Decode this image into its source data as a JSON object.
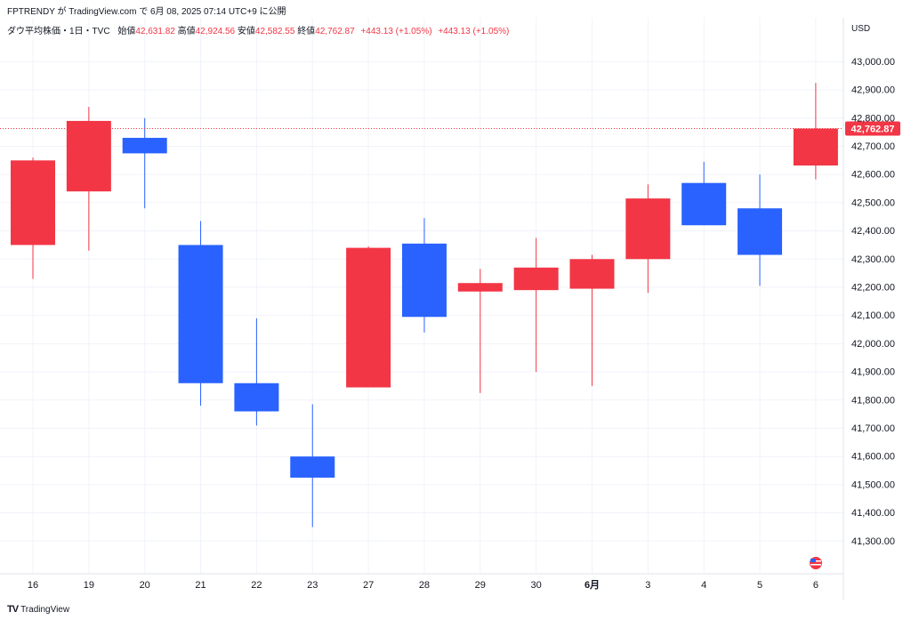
{
  "attribution": "FPTRENDY が TradingView.com で 6月 08, 2025 07:14 UTC+9 に公開",
  "legend": {
    "symbol": "ダウ平均株価・1日・TVC",
    "open_label": "始値",
    "open_value": "42,631.82",
    "high_label": "高値",
    "high_value": "42,924.56",
    "low_label": "安値",
    "low_value": "42,582.55",
    "close_label": "終値",
    "close_value": "42,762.87",
    "change1": "+443.13 (+1.05%)",
    "change2": "+443.13 (+1.05%)"
  },
  "currency": "USD",
  "last_price_label": "42,762.87",
  "footer": {
    "logo_mark": "TV",
    "logo_text": "TradingView"
  },
  "colors": {
    "up": "#f23645",
    "down": "#2962ff",
    "grid": "#f0f3fa",
    "text": "#131722"
  },
  "chart_data": {
    "type": "candlestick",
    "y_range": [
      41200,
      43080
    ],
    "y_ticks": [
      41300,
      41400,
      41500,
      41600,
      41700,
      41800,
      41900,
      42000,
      42100,
      42200,
      42300,
      42400,
      42500,
      42600,
      42700,
      42800,
      42900,
      43000
    ],
    "y_tick_labels": [
      "41,300.00",
      "41,400.00",
      "41,500.00",
      "41,600.00",
      "41,700.00",
      "41,800.00",
      "41,900.00",
      "42,000.00",
      "42,100.00",
      "42,200.00",
      "42,300.00",
      "42,400.00",
      "42,500.00",
      "42,600.00",
      "42,700.00",
      "42,800.00",
      "42,900.00",
      "43,000.00"
    ],
    "categories": [
      "16",
      "19",
      "20",
      "21",
      "22",
      "23",
      "27",
      "28",
      "29",
      "30",
      "6月",
      "3",
      "4",
      "5",
      "6"
    ],
    "bold_categories": [
      "6月"
    ],
    "candles": [
      {
        "o": 42350,
        "h": 42660,
        "l": 42230,
        "c": 42650
      },
      {
        "o": 42540,
        "h": 42840,
        "l": 42330,
        "c": 42790
      },
      {
        "o": 42730,
        "h": 42800,
        "l": 42480,
        "c": 42675
      },
      {
        "o": 42350,
        "h": 42435,
        "l": 41780,
        "c": 41860
      },
      {
        "o": 41860,
        "h": 42090,
        "l": 41710,
        "c": 41760
      },
      {
        "o": 41600,
        "h": 41785,
        "l": 41350,
        "c": 41525
      },
      {
        "o": 41845,
        "h": 42345,
        "l": 41845,
        "c": 42340
      },
      {
        "o": 42355,
        "h": 42445,
        "l": 42040,
        "c": 42095
      },
      {
        "o": 42185,
        "h": 42265,
        "l": 41825,
        "c": 42215
      },
      {
        "o": 42190,
        "h": 42375,
        "l": 41900,
        "c": 42270
      },
      {
        "o": 42195,
        "h": 42315,
        "l": 41850,
        "c": 42300
      },
      {
        "o": 42300,
        "h": 42565,
        "l": 42180,
        "c": 42515
      },
      {
        "o": 42570,
        "h": 42645,
        "l": 42420,
        "c": 42420
      },
      {
        "o": 42480,
        "h": 42600,
        "l": 42205,
        "c": 42315
      },
      {
        "o": 42631.82,
        "h": 42924.56,
        "l": 42582.55,
        "c": 42762.87
      }
    ],
    "last_price": 42762.87
  }
}
